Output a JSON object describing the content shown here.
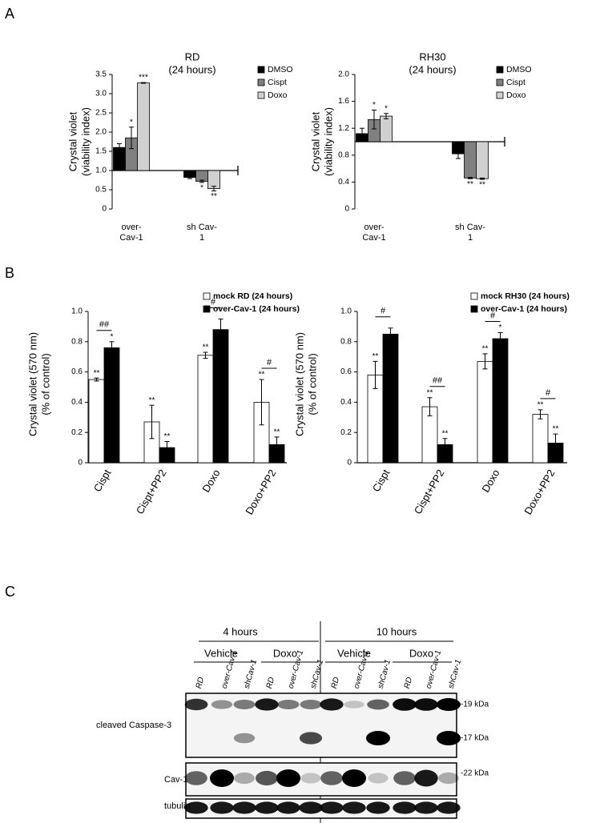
{
  "panel_labels": [
    "A",
    "B",
    "C"
  ],
  "chart_data": [
    {
      "type": "bar",
      "title": "RD",
      "subtitle": "(24 hours)",
      "ylabel": [
        "Crystal violet",
        "(viability index)"
      ],
      "categories": [
        "over-Cav-1",
        "sh Cav-1"
      ],
      "baseline": 1,
      "ylim": [
        0,
        3.5
      ],
      "yticks": [
        0,
        0.5,
        {
          "value": 1,
          "label": "1.0"
        },
        1.5,
        {
          "value": 2,
          "label": "2.0"
        },
        2.5,
        {
          "value": 3,
          "label": "3.0"
        },
        3.5
      ],
      "legend": "right",
      "series": [
        {
          "name": "DMSO",
          "color": "#000000",
          "values": [
            1.6,
            0.82
          ],
          "errors": [
            0.1,
            0.03
          ],
          "annotations": [
            null,
            null
          ]
        },
        {
          "name": "Cispt",
          "color": "#808080",
          "values": [
            1.85,
            0.72
          ],
          "errors": [
            0.28,
            0.03
          ],
          "annotations": [
            "*",
            "*"
          ]
        },
        {
          "name": "Doxo",
          "color": "#d0d0d0",
          "values": [
            3.28,
            0.53
          ],
          "errors": [
            0.01,
            0.06
          ],
          "annotations": [
            "***",
            "**"
          ]
        }
      ]
    },
    {
      "type": "bar",
      "title": "RH30",
      "subtitle": "(24 hours)",
      "ylabel": [
        "Crystal violet",
        "(viability index)"
      ],
      "categories": [
        "over-Cav-1",
        "sh Cav-1"
      ],
      "baseline": 1,
      "ylim": [
        0,
        2
      ],
      "yticks": [
        0,
        0.4,
        0.8,
        1.2,
        1.6,
        {
          "value": 2,
          "label": "2.0"
        }
      ],
      "legend": "right",
      "series": [
        {
          "name": "DMSO",
          "color": "#000000",
          "values": [
            1.12,
            0.82
          ],
          "errors": [
            0.08,
            0.07
          ],
          "annotations": [
            null,
            null
          ]
        },
        {
          "name": "Cispt",
          "color": "#808080",
          "values": [
            1.33,
            0.46
          ],
          "errors": [
            0.14,
            0.01
          ],
          "annotations": [
            "*",
            "**"
          ]
        },
        {
          "name": "Doxo",
          "color": "#d0d0d0",
          "values": [
            1.38,
            0.45
          ],
          "errors": [
            0.04,
            0.01
          ],
          "annotations": [
            "*",
            "**"
          ]
        }
      ]
    },
    {
      "type": "bar",
      "ylabel": [
        "Crystal violet (570 nm)",
        "(% of control)"
      ],
      "categories": [
        "Cispt",
        "Cispt+PP2",
        "Doxo",
        "Doxo+PP2"
      ],
      "ylim": [
        0,
        1
      ],
      "yticks": [
        0,
        0.2,
        0.4,
        0.6,
        0.8,
        {
          "value": 1,
          "label": "1.0"
        }
      ],
      "legend": "top",
      "bracket_labels": [
        "##",
        null,
        "#",
        "#"
      ],
      "series": [
        {
          "name": "mock RD (24 hours)",
          "color": "#ffffff",
          "values": [
            0.55,
            0.27,
            0.71,
            0.4
          ],
          "errors": [
            0.01,
            0.11,
            0.02,
            0.15
          ],
          "annotations": [
            "**",
            "**",
            "**",
            "**"
          ]
        },
        {
          "name": "over-Cav-1 (24 hours)",
          "color": "#000000",
          "values": [
            0.76,
            0.1,
            0.88,
            0.12
          ],
          "errors": [
            0.04,
            0.04,
            0.07,
            0.05
          ],
          "annotations": [
            "*",
            "**",
            null,
            "**"
          ]
        }
      ]
    },
    {
      "type": "bar",
      "ylabel": [
        "Crystal violet (570 nm)",
        "(% of control)"
      ],
      "categories": [
        "Cispt",
        "Cispt+PP2",
        "Doxo",
        "Doxo+PP2"
      ],
      "ylim": [
        0,
        1
      ],
      "yticks": [
        0,
        0.2,
        0.4,
        0.6,
        0.8,
        {
          "value": 1,
          "label": "1.0"
        }
      ],
      "legend": "top",
      "bracket_labels": [
        "#",
        "##",
        "#",
        "#"
      ],
      "series": [
        {
          "name": "mock RH30 (24 hours)",
          "color": "#ffffff",
          "values": [
            0.58,
            0.37,
            0.67,
            0.32
          ],
          "errors": [
            0.09,
            0.06,
            0.05,
            0.03
          ],
          "annotations": [
            "**",
            "**",
            "**",
            "**"
          ]
        },
        {
          "name": "over-Cav-1 (24 hours)",
          "color": "#000000",
          "values": [
            0.85,
            0.12,
            0.82,
            0.13
          ],
          "errors": [
            0.04,
            0.04,
            0.04,
            0.06
          ],
          "annotations": [
            null,
            "**",
            "*",
            "**"
          ]
        }
      ]
    }
  ],
  "blot": {
    "times": [
      "4 hours",
      "10 hours"
    ],
    "treatments": [
      "Vehicle",
      "Doxo",
      "Vehicle",
      "Doxo"
    ],
    "lanes": [
      "RD",
      "over-Cav-1",
      "shCav-1",
      "RD",
      "over-Cav-1",
      "shCav-1",
      "RD",
      "over-Cav-1",
      "shCav-1",
      "RD",
      "over-Cav-1",
      "shCav-1"
    ],
    "rows": [
      "cleaved Caspase-3",
      "Cav-1",
      "tubulin"
    ],
    "markers": [
      "-19 kDa",
      "-17 kDa",
      "-22 kDa"
    ]
  }
}
